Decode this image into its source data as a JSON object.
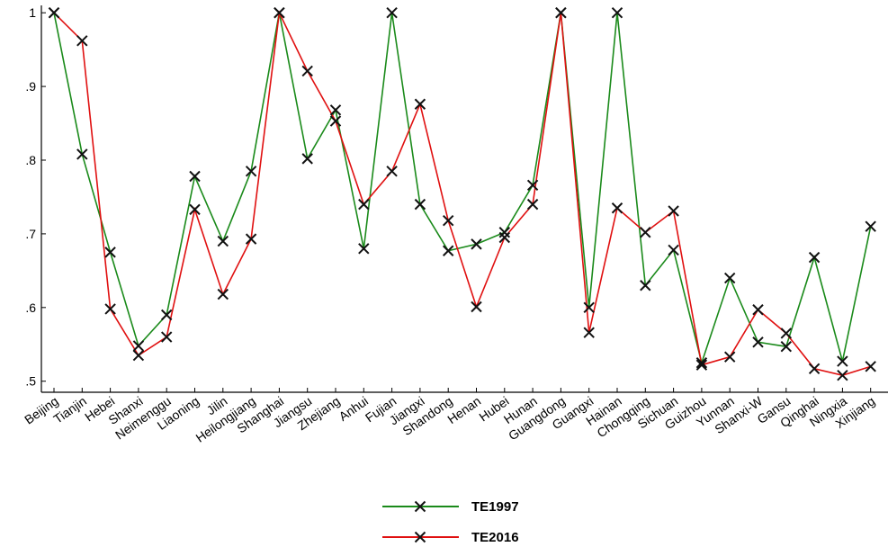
{
  "chart_data": {
    "type": "line",
    "title": "",
    "xlabel": "",
    "ylabel": "",
    "categories": [
      "Beijing",
      "Tianjin",
      "Hebei",
      "Shanxi",
      "Neimenggu",
      "Liaoning",
      "Jilin",
      "Heilongjiang",
      "Shanghai",
      "Jiangsu",
      "Zhejiang",
      "Anhui",
      "Fujian",
      "Jiangxi",
      "Shandong",
      "Henan",
      "Hubei",
      "Hunan",
      "Guangdong",
      "Guangxi",
      "Hainan",
      "Chongqing",
      "Sichuan",
      "Guizhou",
      "Yunnan",
      "Shanxi-W",
      "Gansu",
      "Qinghai",
      "Ningxia",
      "Xinjiang"
    ],
    "ylim": [
      0.485,
      1.01
    ],
    "yticks": [
      0.5,
      0.6,
      0.7,
      0.8,
      0.9,
      1.0
    ],
    "ytick_labels": [
      ".5",
      ".6",
      ".7",
      ".8",
      ".9",
      "1"
    ],
    "grid": false,
    "legend_position": "bottom-center",
    "series": [
      {
        "name": "TE1997",
        "color": "#1a8a1a",
        "marker": "x",
        "values": [
          1.0,
          0.808,
          0.675,
          0.548,
          0.59,
          0.778,
          0.69,
          0.785,
          1.0,
          0.802,
          0.868,
          0.68,
          1.0,
          0.74,
          0.677,
          0.686,
          0.702,
          0.766,
          1.0,
          0.6,
          1.0,
          0.63,
          0.678,
          0.525,
          0.64,
          0.553,
          0.547,
          0.668,
          0.527,
          0.71
        ]
      },
      {
        "name": "TE2016",
        "color": "#e01010",
        "marker": "x",
        "values": [
          1.0,
          0.962,
          0.598,
          0.535,
          0.56,
          0.733,
          0.618,
          0.693,
          1.0,
          0.921,
          0.853,
          0.74,
          0.785,
          0.876,
          0.718,
          0.601,
          0.695,
          0.74,
          1.0,
          0.566,
          0.735,
          0.702,
          0.731,
          0.522,
          0.533,
          0.597,
          0.565,
          0.517,
          0.508,
          0.52
        ]
      }
    ]
  }
}
